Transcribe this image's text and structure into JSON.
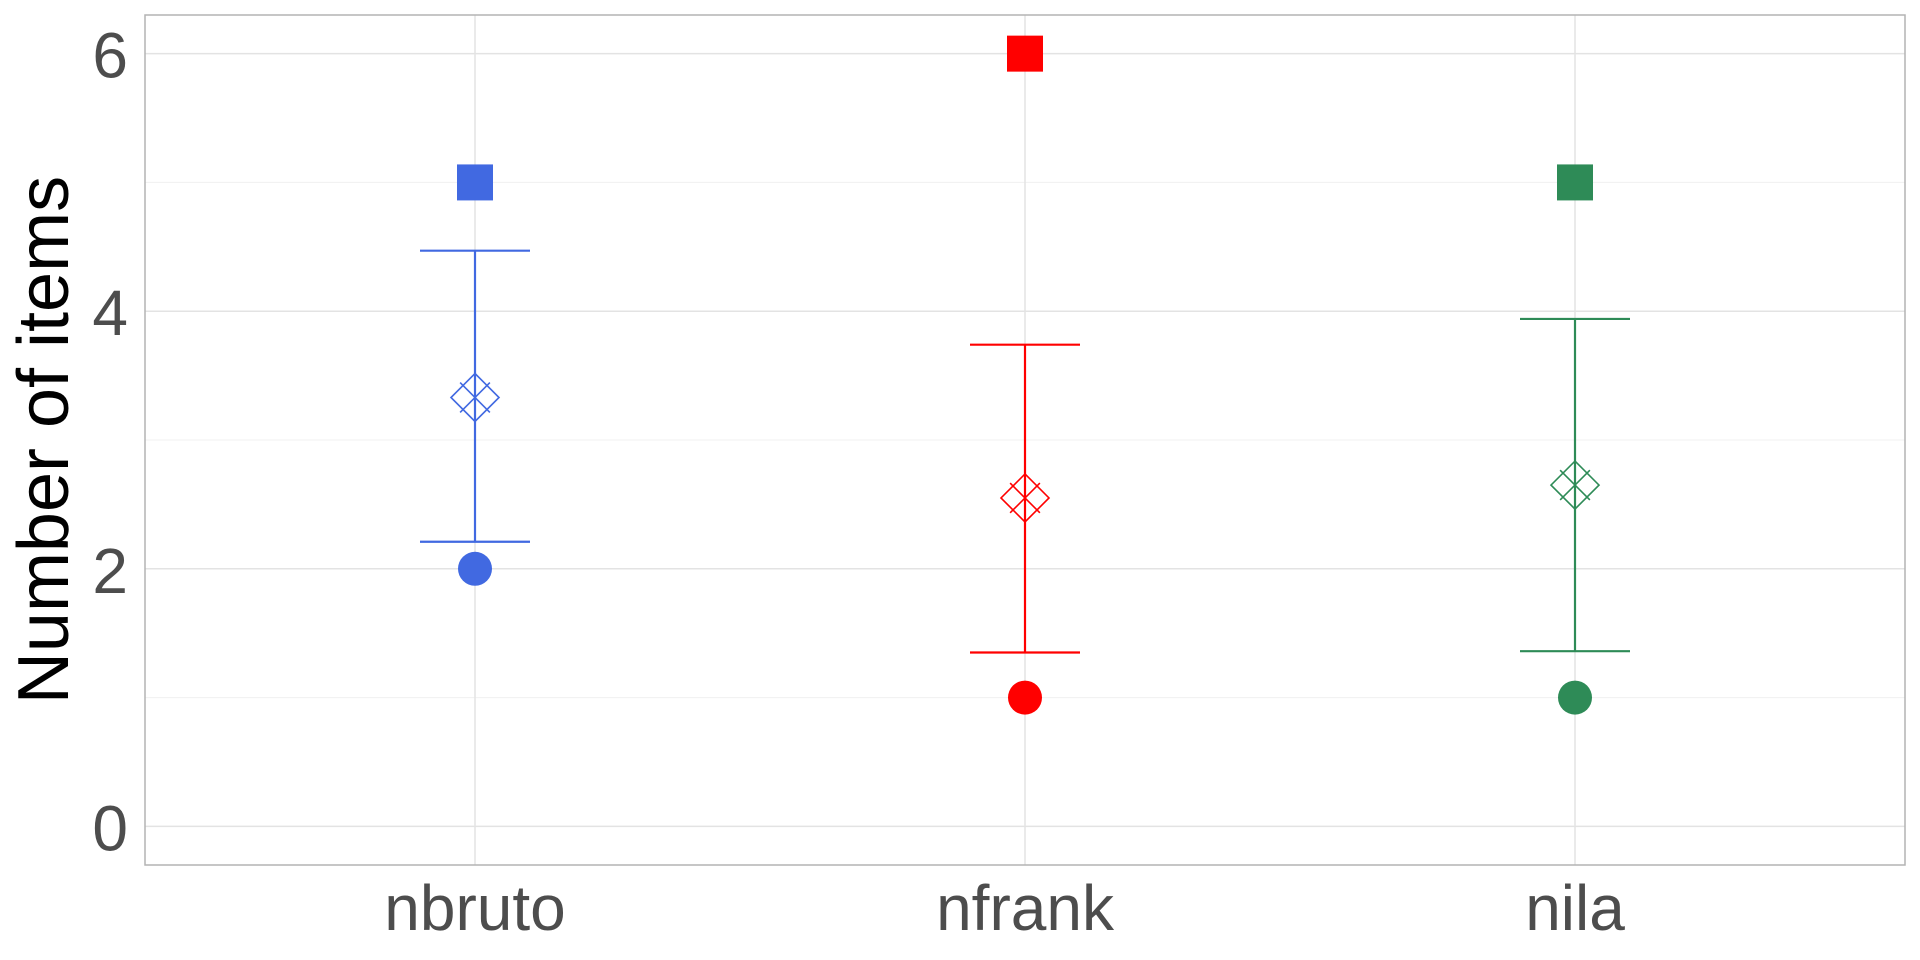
{
  "chart_data": {
    "type": "scatter",
    "ylabel": "Number of items",
    "xlabel": "",
    "categories": [
      "nbruto",
      "nfrank",
      "nila"
    ],
    "ylim": [
      -0.3,
      6.3
    ],
    "yticks": [
      0,
      2,
      4,
      6
    ],
    "grid": true,
    "colors": [
      "#4169E1",
      "#FF0000",
      "#2E8B57"
    ],
    "marker_legend": {
      "max": "square",
      "mean": "open diamond with x",
      "min": "circle"
    },
    "series": [
      {
        "category": "nbruto",
        "max": 5,
        "mean": 3.33,
        "lower": 2.21,
        "upper": 4.47,
        "min": 2
      },
      {
        "category": "nfrank",
        "max": 6,
        "mean": 2.55,
        "lower": 1.35,
        "upper": 3.74,
        "min": 1
      },
      {
        "category": "nila",
        "max": 5,
        "mean": 2.65,
        "lower": 1.36,
        "upper": 3.94,
        "min": 1
      }
    ]
  }
}
